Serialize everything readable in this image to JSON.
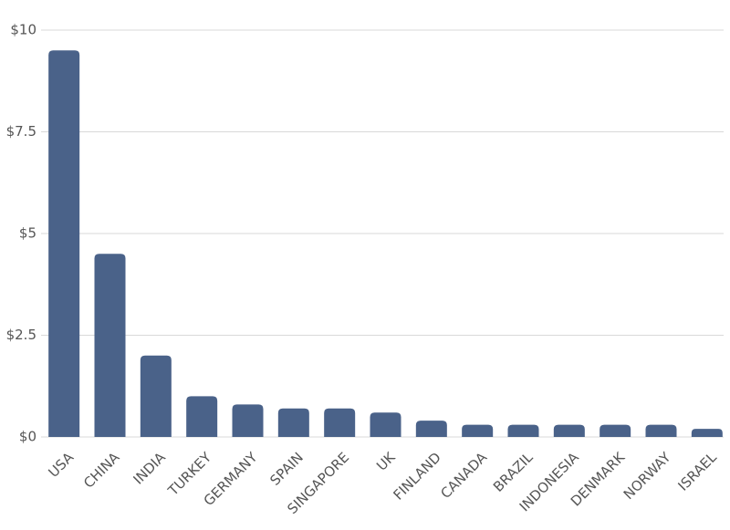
{
  "chart_data": {
    "type": "bar",
    "categories": [
      "USA",
      "CHINA",
      "INDIA",
      "TURKEY",
      "GERMANY",
      "SPAIN",
      "SINGAPORE",
      "UK",
      "FINLAND",
      "CANADA",
      "BRAZIL",
      "INDONESIA",
      "DENMARK",
      "NORWAY",
      "ISRAEL"
    ],
    "values": [
      9.5,
      4.5,
      2.0,
      1.0,
      0.8,
      0.7,
      0.7,
      0.6,
      0.4,
      0.3,
      0.3,
      0.3,
      0.3,
      0.3,
      0.2
    ],
    "color": "#4a6289",
    "ylim": [
      0,
      10
    ],
    "yticks": [
      {
        "value": 0,
        "label": "$0"
      },
      {
        "value": 2.5,
        "label": "$2.5"
      },
      {
        "value": 5,
        "label": "$5"
      },
      {
        "value": 7.5,
        "label": "$7.5"
      },
      {
        "value": 10,
        "label": "$10"
      }
    ],
    "grid": true
  }
}
